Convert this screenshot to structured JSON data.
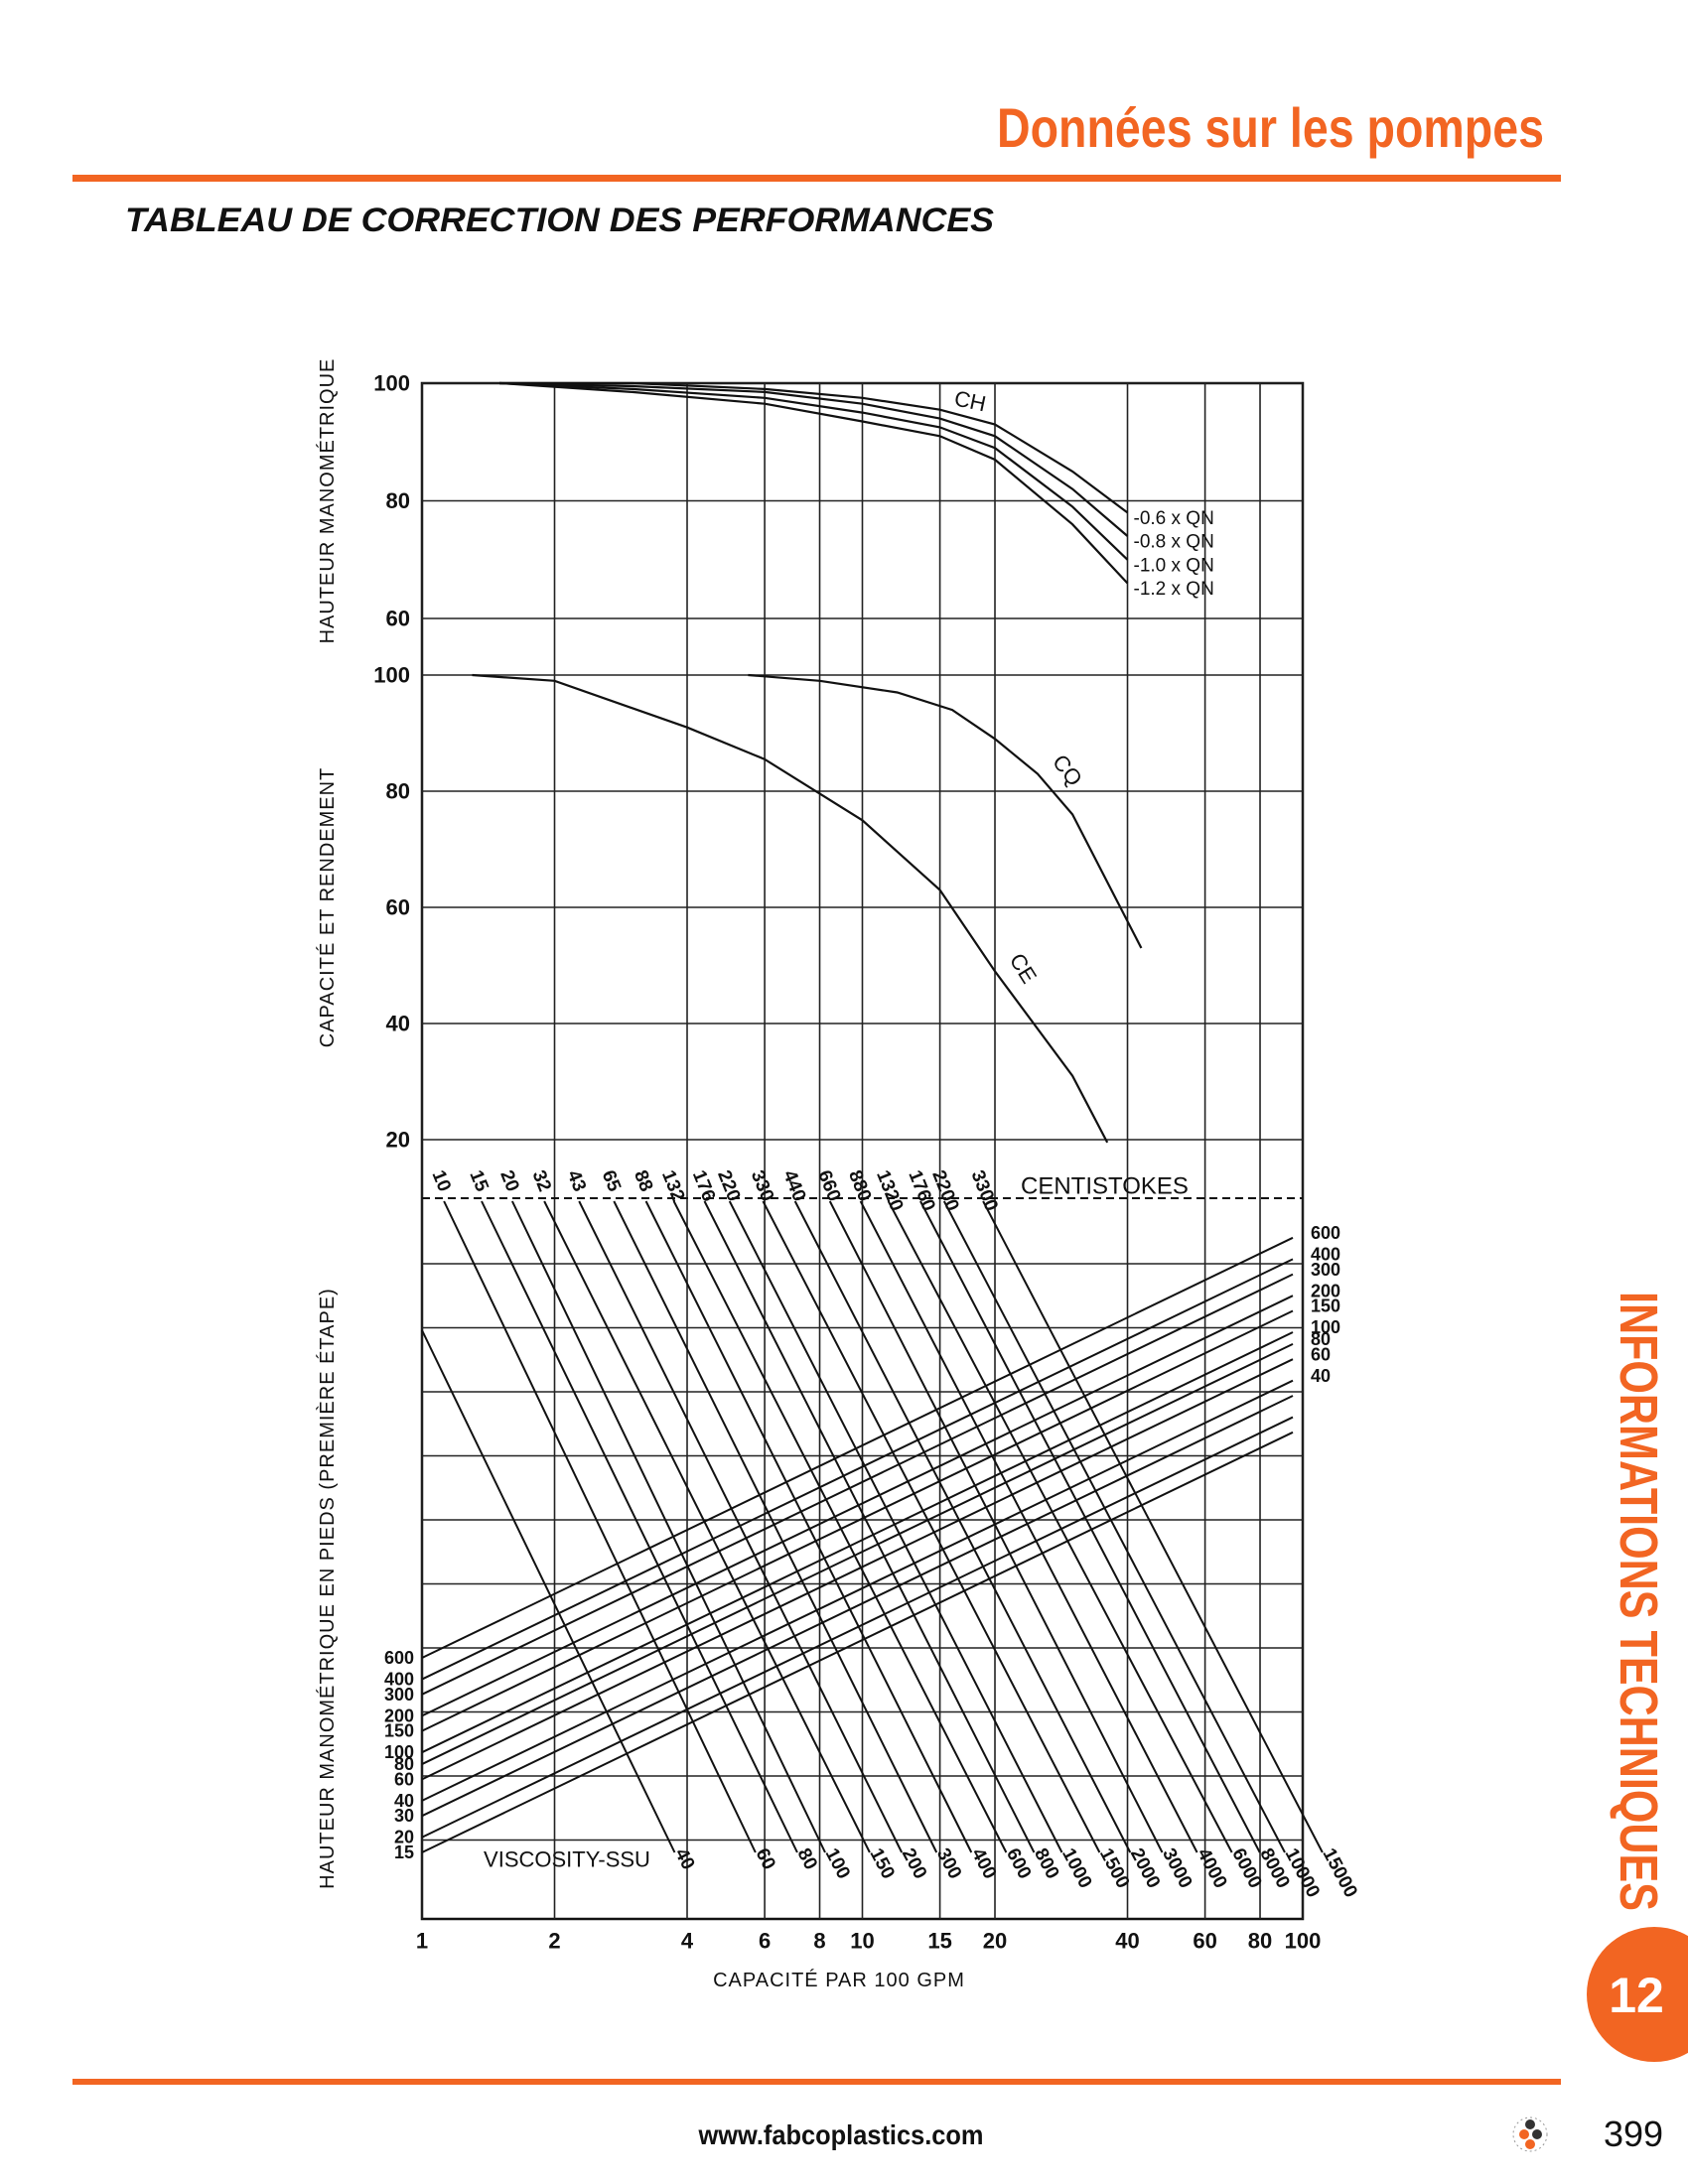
{
  "header": {
    "title": "Données sur les pompes",
    "subtitle": "TABLEAU DE CORRECTION DES PERFORMANCES"
  },
  "chart_data": {
    "type": "nomogram",
    "xlabel": "CAPACITÉ PAR 100 GPM",
    "xscale": "log",
    "xlim": [
      1,
      100
    ],
    "xticks": [
      1,
      2,
      4,
      6,
      8,
      10,
      15,
      20,
      40,
      60,
      80,
      100
    ],
    "grid": true,
    "panels": [
      {
        "ylabel": "HAUTEUR MANOMÉTRIQUE",
        "ylim": [
          60,
          100
        ],
        "yticks": [
          60,
          80,
          100
        ],
        "curve_label": "CH",
        "series": [
          {
            "name": "-0.6 x QN",
            "x": [
              1.5,
              3,
              6,
              10,
              15,
              20,
              30,
              40
            ],
            "values": [
              100,
              100,
              99,
              97.5,
              95.5,
              93,
              85,
              78
            ]
          },
          {
            "name": "-0.8 x QN",
            "x": [
              1.5,
              3,
              6,
              10,
              15,
              20,
              30,
              40
            ],
            "values": [
              100,
              99.5,
              98.5,
              96.5,
              94,
              91,
              82,
              74
            ]
          },
          {
            "name": "-1.0 x QN",
            "x": [
              1.5,
              3,
              6,
              10,
              15,
              20,
              30,
              40
            ],
            "values": [
              100,
              99,
              97.5,
              95,
              92.5,
              89,
              79,
              70
            ]
          },
          {
            "name": "-1.2 x QN",
            "x": [
              1.5,
              3,
              6,
              10,
              15,
              20,
              30,
              40
            ],
            "values": [
              100,
              98.5,
              96.5,
              93.5,
              91,
              87,
              76,
              66
            ]
          }
        ]
      },
      {
        "ylabel": "CAPACITÉ ET RENDEMENT",
        "ylim": [
          20,
          100
        ],
        "yticks": [
          20,
          40,
          60,
          80,
          100
        ],
        "series": [
          {
            "name": "CQ",
            "x": [
              5.5,
              8,
              12,
              16,
              20,
              25,
              30,
              43
            ],
            "values": [
              100,
              99,
              97,
              94,
              89,
              83,
              76,
              53
            ]
          },
          {
            "name": "CE",
            "x": [
              1.3,
              2,
              4,
              6,
              10,
              15,
              20,
              30,
              36
            ],
            "values": [
              100,
              99,
              91,
              85.5,
              75,
              63,
              49,
              31,
              19.5
            ]
          }
        ]
      },
      {
        "ylabel": "HAUTEUR MANOMÉTRIQUE EN PIEDS (PREMIÈRE ÉTAPE)",
        "left_heads": [
          600,
          400,
          300,
          200,
          150,
          100,
          80,
          60,
          40,
          30,
          20,
          15
        ],
        "right_heads": [
          600,
          400,
          300,
          200,
          150,
          100,
          80,
          60,
          40
        ],
        "centistokes_title": "CENTISTOKES",
        "centistokes": [
          10,
          15,
          20,
          32,
          43,
          65,
          88,
          132,
          176,
          220,
          330,
          440,
          660,
          880,
          1320,
          1760,
          2200,
          3300
        ],
        "ssu_title": "VISCOSITY-SSU",
        "ssu": [
          40,
          60,
          80,
          100,
          150,
          200,
          300,
          400,
          600,
          800,
          1000,
          1500,
          2000,
          3000,
          4000,
          6000,
          8000,
          10000,
          15000
        ]
      }
    ]
  },
  "sidebar": {
    "section": "INFORMATIONS TECHNIQUES",
    "chapter": "12"
  },
  "footer": {
    "url": "www.fabcoplastics.com",
    "page": "399"
  }
}
